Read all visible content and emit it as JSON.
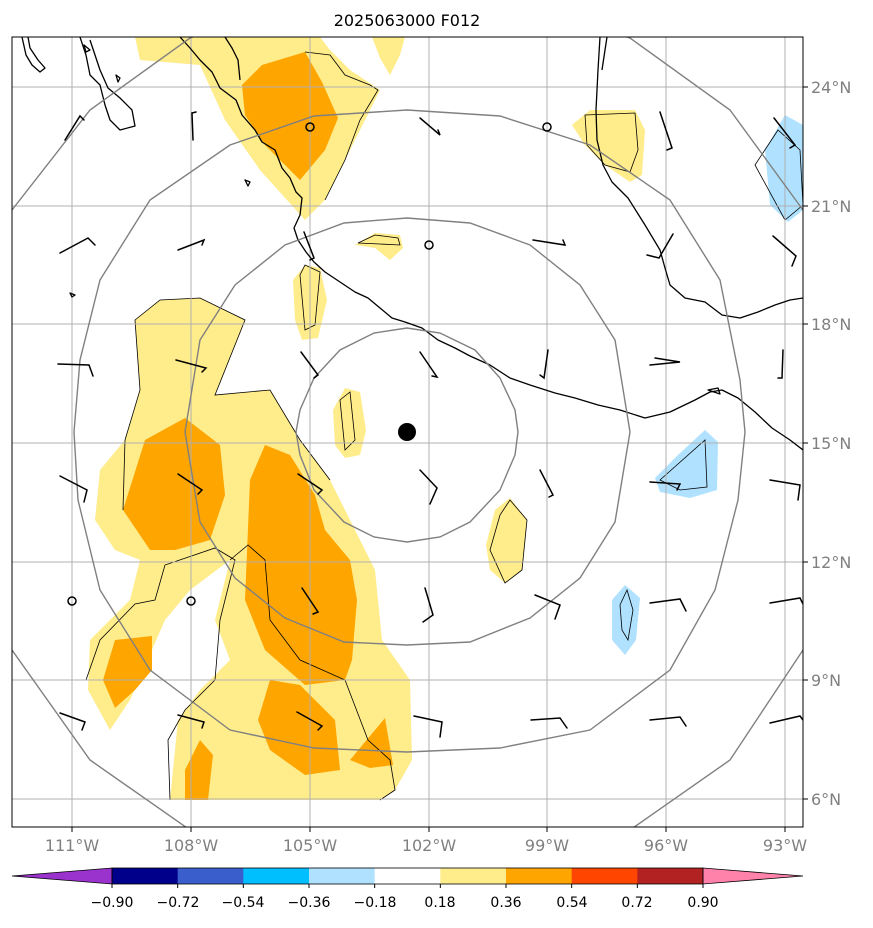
{
  "title": "2025063000 F012",
  "lon_labels": [
    "111°W",
    "108°W",
    "105°W",
    "102°W",
    "99°W",
    "96°W",
    "93°W"
  ],
  "lat_labels": [
    "24°N",
    "21°N",
    "18°N",
    "15°N",
    "12°N",
    "9°N",
    "6°N"
  ],
  "colorbar": {
    "ticks": [
      "−0.90",
      "−0.72",
      "−0.54",
      "−0.36",
      "−0.18",
      "0.18",
      "0.36",
      "0.54",
      "0.72",
      "0.90"
    ],
    "colors": [
      "#9a32cd",
      "#00008b",
      "#3a5fcd",
      "#00bfff",
      "#b0e2ff",
      "#ffffff",
      "#ffec8b",
      "#ffa500",
      "#ff4500",
      "#b22222",
      "#ff82ab"
    ]
  },
  "colors": {
    "light_yellow": "#ffec8b",
    "orange": "#ffa500",
    "light_blue": "#b0e2ff",
    "range_ring": "#808080",
    "grid": "#b0b0b0",
    "tick_label": "#808080"
  },
  "center_marker": {
    "lon": -102.6,
    "lat": 15.2
  }
}
